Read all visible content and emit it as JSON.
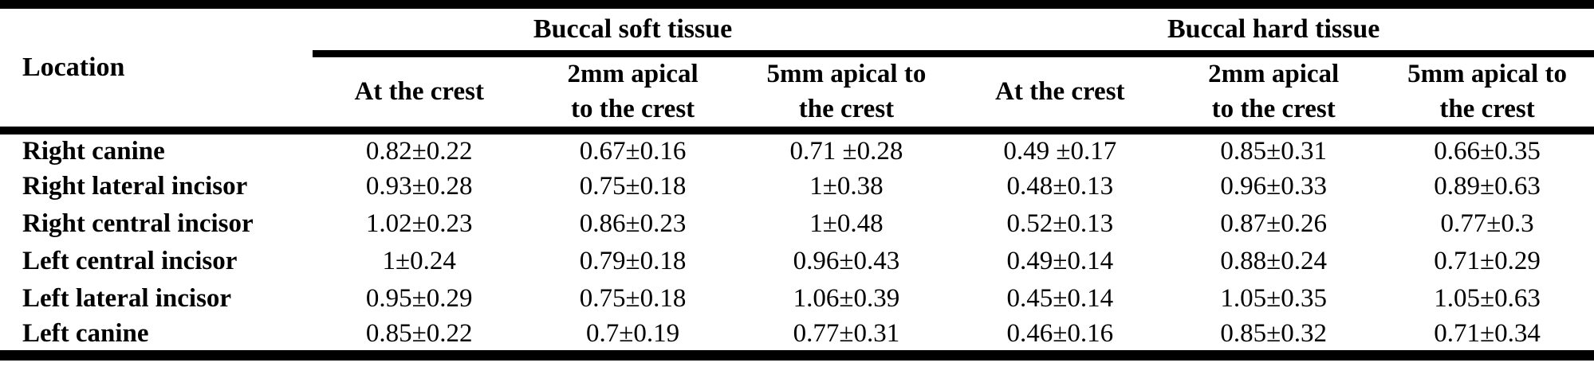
{
  "table": {
    "location_header": "Location",
    "groups": [
      {
        "label": "Buccal soft tissue"
      },
      {
        "label": "Buccal hard tissue"
      }
    ],
    "sub_headers": [
      "At the crest",
      "2mm apical\nto the crest",
      "5mm apical to\nthe crest",
      "At the crest",
      "2mm apical\nto the crest",
      "5mm apical to\nthe crest"
    ],
    "rows": [
      {
        "location": "Right canine",
        "values": [
          "0.82±0.22",
          "0.67±0.16",
          "0.71 ±0.28",
          "0.49 ±0.17",
          "0.85±0.31",
          "0.66±0.35"
        ]
      },
      {
        "location": "Right lateral incisor",
        "values": [
          "0.93±0.28",
          "0.75±0.18",
          "1±0.38",
          "0.48±0.13",
          "0.96±0.33",
          "0.89±0.63"
        ]
      },
      {
        "location": "Right central incisor",
        "values": [
          "1.02±0.23",
          "0.86±0.23",
          "1±0.48",
          "0.52±0.13",
          "0.87±0.26",
          "0.77±0.3"
        ]
      },
      {
        "location": "Left central incisor",
        "values": [
          "1±0.24",
          "0.79±0.18",
          "0.96±0.43",
          "0.49±0.14",
          "0.88±0.24",
          "0.71±0.29"
        ]
      },
      {
        "location": "Left lateral incisor",
        "values": [
          "0.95±0.29",
          "0.75±0.18",
          "1.06±0.39",
          "0.45±0.14",
          "1.05±0.35",
          "1.05±0.63"
        ]
      },
      {
        "location": "Left canine",
        "values": [
          "0.85±0.22",
          "0.7±0.19",
          "0.77±0.31",
          "0.46±0.16",
          "0.85±0.32",
          "0.71±0.34"
        ]
      }
    ],
    "colors": {
      "text": "#000000",
      "rule": "#000000",
      "background": "#ffffff"
    }
  }
}
